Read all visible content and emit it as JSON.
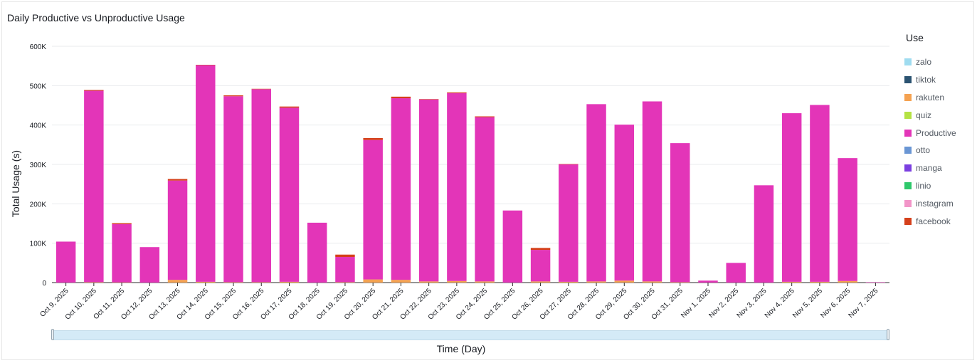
{
  "chart_data": {
    "type": "bar",
    "title": "Daily Productive vs Unproductive Usage",
    "xlabel": "Time (Day)",
    "ylabel": "Total Usage (s)",
    "ylim": [
      0,
      600000
    ],
    "yticks": [
      "0",
      "100K",
      "200K",
      "300K",
      "400K",
      "500K",
      "600K"
    ],
    "grid": true,
    "legend_title": "Use",
    "legend_placement": "right",
    "stacked": true,
    "categories": [
      "Oct 9, 2025",
      "Oct 10, 2025",
      "Oct 11, 2025",
      "Oct 12, 2025",
      "Oct 13, 2025",
      "Oct 14, 2025",
      "Oct 15, 2025",
      "Oct 16, 2025",
      "Oct 17, 2025",
      "Oct 18, 2025",
      "Oct 19, 2025",
      "Oct 20, 2025",
      "Oct 21, 2025",
      "Oct 22, 2025",
      "Oct 23, 2025",
      "Oct 24, 2025",
      "Oct 25, 2025",
      "Oct 26, 2025",
      "Oct 27, 2025",
      "Oct 28, 2025",
      "Oct 29, 2025",
      "Oct 30, 2025",
      "Oct 31, 2025",
      "Nov 1, 2025",
      "Nov 2, 2025",
      "Nov 3, 2025",
      "Nov 4, 2025",
      "Nov 5, 2025",
      "Nov 6, 2025",
      "Nov 7, 2025"
    ],
    "series": [
      {
        "name": "rakuten",
        "color": "#f5a251",
        "values": [
          0,
          1000,
          500,
          0,
          7000,
          2000,
          1000,
          1000,
          2000,
          0,
          1000,
          8000,
          7000,
          3000,
          4000,
          3000,
          0,
          3000,
          2000,
          3000,
          5000,
          3000,
          1000,
          0,
          0,
          0,
          2000,
          2000,
          4000,
          0
        ]
      },
      {
        "name": "Productive",
        "color": "#e335b8",
        "values": [
          104000,
          486000,
          148000,
          90000,
          252000,
          550000,
          472000,
          490000,
          442000,
          152000,
          64000,
          354000,
          461000,
          462000,
          477000,
          417000,
          183000,
          80000,
          298000,
          450000,
          396000,
          457000,
          353000,
          5000,
          50000,
          247000,
          428000,
          449000,
          312000,
          1000
        ]
      },
      {
        "name": "facebook",
        "color": "#d5401b",
        "values": [
          0,
          2000,
          2500,
          0,
          4000,
          1000,
          2500,
          1000,
          3000,
          0,
          6000,
          5000,
          4000,
          1000,
          2000,
          2000,
          0,
          5000,
          1000,
          0,
          0,
          0,
          0,
          0,
          0,
          0,
          0,
          0,
          0,
          0
        ]
      }
    ],
    "legend": [
      {
        "name": "zalo",
        "color": "#9fdcf0"
      },
      {
        "name": "tiktok",
        "color": "#2b5371"
      },
      {
        "name": "rakuten",
        "color": "#f5a251"
      },
      {
        "name": "quiz",
        "color": "#b4e243"
      },
      {
        "name": "Productive",
        "color": "#e335b8"
      },
      {
        "name": "otto",
        "color": "#6a96d4"
      },
      {
        "name": "manga",
        "color": "#7b3fe0"
      },
      {
        "name": "linio",
        "color": "#2ec86b"
      },
      {
        "name": "instagram",
        "color": "#f295c8"
      },
      {
        "name": "facebook",
        "color": "#d5401b"
      }
    ]
  }
}
